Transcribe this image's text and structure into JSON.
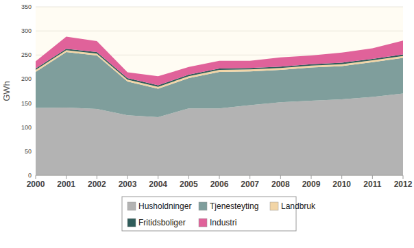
{
  "chart_data": {
    "type": "area",
    "stacked": true,
    "y_label": "GWh",
    "categories": [
      "2000",
      "2001",
      "2002",
      "2003",
      "2004",
      "2005",
      "2006",
      "2007",
      "2008",
      "2009",
      "2010",
      "2011",
      "2012"
    ],
    "series": [
      {
        "name": "Husholdninger",
        "color": "#b3b3b3",
        "values": [
          140,
          141,
          138,
          125,
          121,
          139,
          139,
          146,
          152,
          155,
          158,
          163,
          170
        ]
      },
      {
        "name": "Tjenesteyting",
        "color": "#7f9e9c",
        "values": [
          75,
          115,
          111,
          70,
          59,
          63,
          76,
          70,
          67,
          69,
          69,
          72,
          74
        ]
      },
      {
        "name": "Landbruk",
        "color": "#f2d5a6",
        "values": [
          4,
          4,
          4,
          4,
          4,
          4,
          4,
          4,
          4,
          4,
          4,
          4,
          4
        ]
      },
      {
        "name": "Fritidsboliger",
        "color": "#2f5c5a",
        "values": [
          3,
          3,
          3,
          3,
          3,
          3,
          3,
          3,
          3,
          3,
          3,
          3,
          3
        ]
      },
      {
        "name": "Industri",
        "color": "#e0629a",
        "values": [
          15,
          25,
          23,
          12,
          19,
          16,
          16,
          15,
          19,
          18,
          21,
          22,
          29
        ]
      }
    ],
    "ylim": [
      0,
      350
    ],
    "yticks": [
      0,
      50,
      100,
      150,
      200,
      250,
      300,
      350
    ],
    "grid": true,
    "legend": "bottom"
  }
}
